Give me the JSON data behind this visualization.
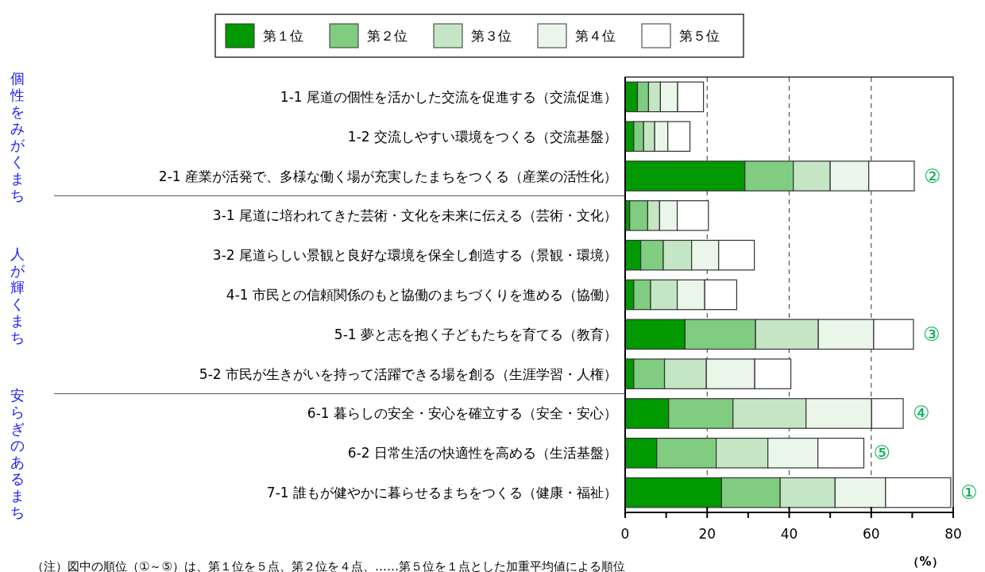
{
  "chart_data": {
    "type": "bar",
    "orientation": "horizontal",
    "stacked": true,
    "categories": [
      "1-1 尾道の個性を活かした交流を促進する（交流促進）",
      "1-2 交流しやすい環境をつくる（交流基盤）",
      "2-1 産業が活発で、多様な働く場が充実したまちをつくる（産業の活性化）",
      "3-1 尾道に培われてきた芸術・文化を未来に伝える（芸術・文化）",
      "3-2 尾道らしい景観と良好な環境を保全し創造する（景観・環境）",
      "4-1 市民との信頼関係のもと協働のまちづくりを進める（協働）",
      "5-1 夢と志を抱く子どもたちを育てる（教育）",
      "5-2 市民が生きがいを持って活躍できる場を創る（生涯学習・人権）",
      "6-1 暮らしの安全・安心を確立する（安全・安心）",
      "6-2 日常生活の快適性を高める（生活基盤）",
      "7-1 誰もが健やかに暮らせるまちをつくる（健康・福祉）"
    ],
    "series": [
      {
        "name": "第１位",
        "color": "#009900",
        "values": [
          3.0,
          2.1,
          29.2,
          1.1,
          3.8,
          2.1,
          14.6,
          2.1,
          10.6,
          7.7,
          23.5
        ]
      },
      {
        "name": "第２位",
        "color": "#80cc80",
        "values": [
          2.7,
          2.4,
          11.8,
          4.4,
          5.5,
          4.1,
          17.2,
          7.5,
          15.7,
          14.5,
          14.3
        ]
      },
      {
        "name": "第３位",
        "color": "#c4e6c4",
        "values": [
          2.9,
          2.7,
          9.0,
          2.9,
          6.9,
          6.5,
          15.3,
          10.2,
          17.8,
          12.6,
          13.4
        ]
      },
      {
        "name": "第４位",
        "color": "#eaf6ea",
        "values": [
          4.2,
          3.2,
          9.4,
          4.3,
          6.6,
          6.7,
          13.5,
          11.8,
          16.0,
          12.2,
          12.3
        ]
      },
      {
        "name": "第５位",
        "color": "#ffffff",
        "values": [
          6.3,
          5.4,
          11.1,
          7.6,
          8.7,
          7.8,
          9.7,
          8.8,
          7.7,
          11.2,
          15.9
        ]
      }
    ],
    "xlim": [
      0,
      80
    ],
    "xticks": [
      0,
      {
        "value": 10,
        "label": null
      },
      20,
      {
        "value": 30,
        "label": null
      },
      40,
      {
        "value": 50,
        "label": null
      },
      60,
      {
        "value": 70,
        "label": null
      },
      80
    ],
    "xlabel": "（%）",
    "grid": "x",
    "legend": "top",
    "annotations": [
      "個性をみがくまち",
      "人が輝くまち",
      "安らぎのあるまち",
      {
        "text": "②",
        "x": 70.5,
        "y": "2-1 産業が活発で、多様な働く場が充実したまちをつくる（産業の活性化）"
      },
      {
        "text": "③",
        "x": 70.3,
        "y": "5-1 夢と志を抱く子どもたちを育てる（教育）"
      },
      {
        "text": "④",
        "x": 67.8,
        "y": "6-1 暮らしの安全・安心を確立する（安全・安心）"
      },
      {
        "text": "⑤",
        "x": 58.2,
        "y": "6-2 日常生活の快適性を高める（生活基盤）"
      },
      {
        "text": "①",
        "x": 79.4,
        "y": "7-1 誰もが健やかに暮らせるまちをつくる（健康・福祉）"
      },
      "（注）図中の順位（①～⑤）は、第１位を５点、第２位を４点、……第５位を１点とした加重平均値による順位"
    ]
  }
}
